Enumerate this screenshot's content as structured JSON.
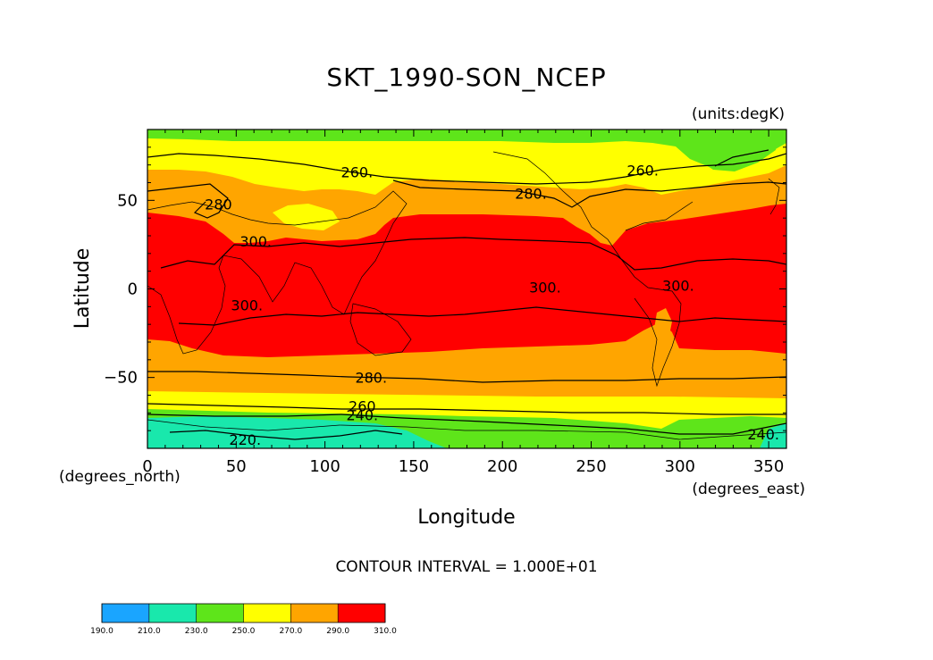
{
  "title": "SKT_1990-SON_NCEP",
  "units": "(units:degK)",
  "y_axis": {
    "label": "Latitude",
    "unit_label": "(degrees_north)",
    "ticks": [
      {
        "value": 50,
        "label": "50"
      },
      {
        "value": 0,
        "label": "0"
      },
      {
        "value": -50,
        "label": "−50"
      }
    ],
    "range": [
      -90,
      90
    ]
  },
  "x_axis": {
    "label": "Longitude",
    "unit_label": "(degrees_east)",
    "ticks": [
      {
        "value": 0,
        "label": "0"
      },
      {
        "value": 50,
        "label": "50"
      },
      {
        "value": 100,
        "label": "100"
      },
      {
        "value": 150,
        "label": "150"
      },
      {
        "value": 200,
        "label": "200"
      },
      {
        "value": 250,
        "label": "250"
      },
      {
        "value": 300,
        "label": "300"
      },
      {
        "value": 350,
        "label": "350"
      }
    ],
    "range": [
      0,
      360
    ]
  },
  "contour_interval_text": "CONTOUR INTERVAL = 1.000E+01",
  "colors": {
    "c190": "#1aa5ff",
    "c210": "#19e8ac",
    "c230": "#5ee51a",
    "c250": "#ffff00",
    "c270": "#ffa500",
    "c290": "#ff0000"
  },
  "colorbar": {
    "labels": [
      "190.0",
      "210.0",
      "230.0",
      "250.0",
      "270.0",
      "290.0",
      "310.0"
    ],
    "bins": [
      {
        "range": [
          190,
          210
        ],
        "color": "#1aa5ff"
      },
      {
        "range": [
          210,
          230
        ],
        "color": "#19e8ac"
      },
      {
        "range": [
          230,
          250
        ],
        "color": "#5ee51a"
      },
      {
        "range": [
          250,
          270
        ],
        "color": "#ffff00"
      },
      {
        "range": [
          270,
          290
        ],
        "color": "#ffa500"
      },
      {
        "range": [
          290,
          310
        ],
        "color": "#ff0000"
      }
    ]
  },
  "contour_labels": [
    {
      "text": "260.",
      "lon": 118,
      "lat": 66
    },
    {
      "text": "260.",
      "lon": 279,
      "lat": 67
    },
    {
      "text": "280.",
      "lon": 216,
      "lat": 54
    },
    {
      "text": "280",
      "lon": 40,
      "lat": 48
    },
    {
      "text": "300.",
      "lon": 61,
      "lat": 27
    },
    {
      "text": "300.",
      "lon": 56,
      "lat": -9
    },
    {
      "text": "300.",
      "lon": 224,
      "lat": 1
    },
    {
      "text": "300.",
      "lon": 299,
      "lat": 2
    },
    {
      "text": "280.",
      "lon": 126,
      "lat": -50
    },
    {
      "text": "260",
      "lon": 121,
      "lat": -66
    },
    {
      "text": "240.",
      "lon": 121,
      "lat": -71
    },
    {
      "text": "220.",
      "lon": 55,
      "lat": -85
    },
    {
      "text": "240.",
      "lon": 347,
      "lat": -82
    }
  ]
}
